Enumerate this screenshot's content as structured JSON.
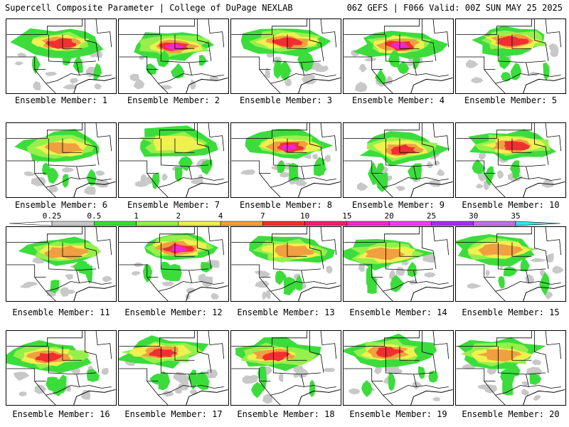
{
  "header": {
    "title": "Supercell Composite Parameter | College of DuPage NEXLAB",
    "run_info": "06Z GEFS | F066 Valid: 00Z SUN MAY 25 2025"
  },
  "members": [
    {
      "label": "Ensemble Member: 1",
      "intensity": 0.8
    },
    {
      "label": "Ensemble Member: 2",
      "intensity": 1.0
    },
    {
      "label": "Ensemble Member: 3",
      "intensity": 0.75
    },
    {
      "label": "Ensemble Member: 4",
      "intensity": 0.95
    },
    {
      "label": "Ensemble Member: 5",
      "intensity": 0.85
    },
    {
      "label": "Ensemble Member: 6",
      "intensity": 0.7
    },
    {
      "label": "Ensemble Member: 7",
      "intensity": 0.55
    },
    {
      "label": "Ensemble Member: 8",
      "intensity": 0.95
    },
    {
      "label": "Ensemble Member: 9",
      "intensity": 0.9
    },
    {
      "label": "Ensemble Member: 10",
      "intensity": 0.75
    },
    {
      "label": "Ensemble Member: 11",
      "intensity": 0.65
    },
    {
      "label": "Ensemble Member: 12",
      "intensity": 0.95
    },
    {
      "label": "Ensemble Member: 13",
      "intensity": 0.7
    },
    {
      "label": "Ensemble Member: 14",
      "intensity": 0.65
    },
    {
      "label": "Ensemble Member: 15",
      "intensity": 0.6
    },
    {
      "label": "Ensemble Member: 16",
      "intensity": 0.8
    },
    {
      "label": "Ensemble Member: 17",
      "intensity": 0.75
    },
    {
      "label": "Ensemble Member: 18",
      "intensity": 0.75
    },
    {
      "label": "Ensemble Member: 19",
      "intensity": 0.8
    },
    {
      "label": "Ensemble Member: 20",
      "intensity": 0.6
    }
  ],
  "colorbar": {
    "ticks": [
      "0.25",
      "0.5",
      "1",
      "2",
      "4",
      "7",
      "10",
      "15",
      "20",
      "25",
      "30",
      "35"
    ],
    "colors": [
      "#c8c8c8",
      "#3cdc3c",
      "#96f04b",
      "#f0f050",
      "#f0a040",
      "#f03030",
      "#f01e6e",
      "#f028c8",
      "#f03cf0",
      "#a030f0",
      "#c070e0",
      "#40e0f0"
    ]
  }
}
